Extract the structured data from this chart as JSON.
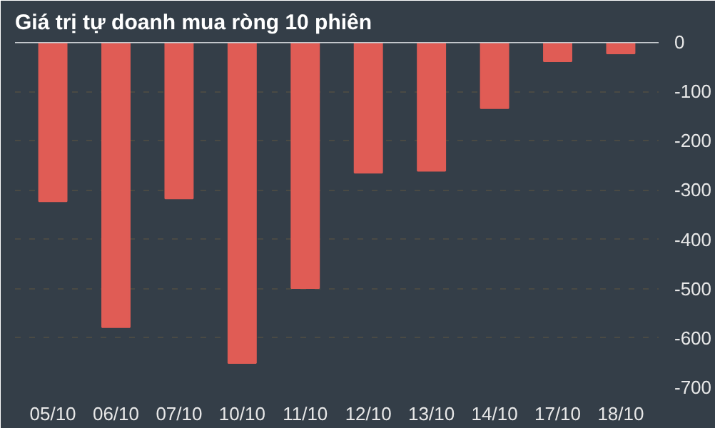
{
  "chart_data": {
    "type": "bar",
    "title": "Giá trị tự doanh mua ròng 10 phiên",
    "categories": [
      "05/10",
      "06/10",
      "07/10",
      "10/10",
      "11/10",
      "12/10",
      "13/10",
      "14/10",
      "17/10",
      "18/10"
    ],
    "values": [
      -323,
      -578,
      -317,
      -651,
      -499,
      -265,
      -261,
      -134,
      -39,
      -23
    ],
    "color": "#e05c55",
    "ylim": [
      -700,
      0
    ],
    "yticks": [
      0,
      -100,
      -200,
      -300,
      -400,
      -500,
      -600,
      -700
    ],
    "grid": "y"
  }
}
